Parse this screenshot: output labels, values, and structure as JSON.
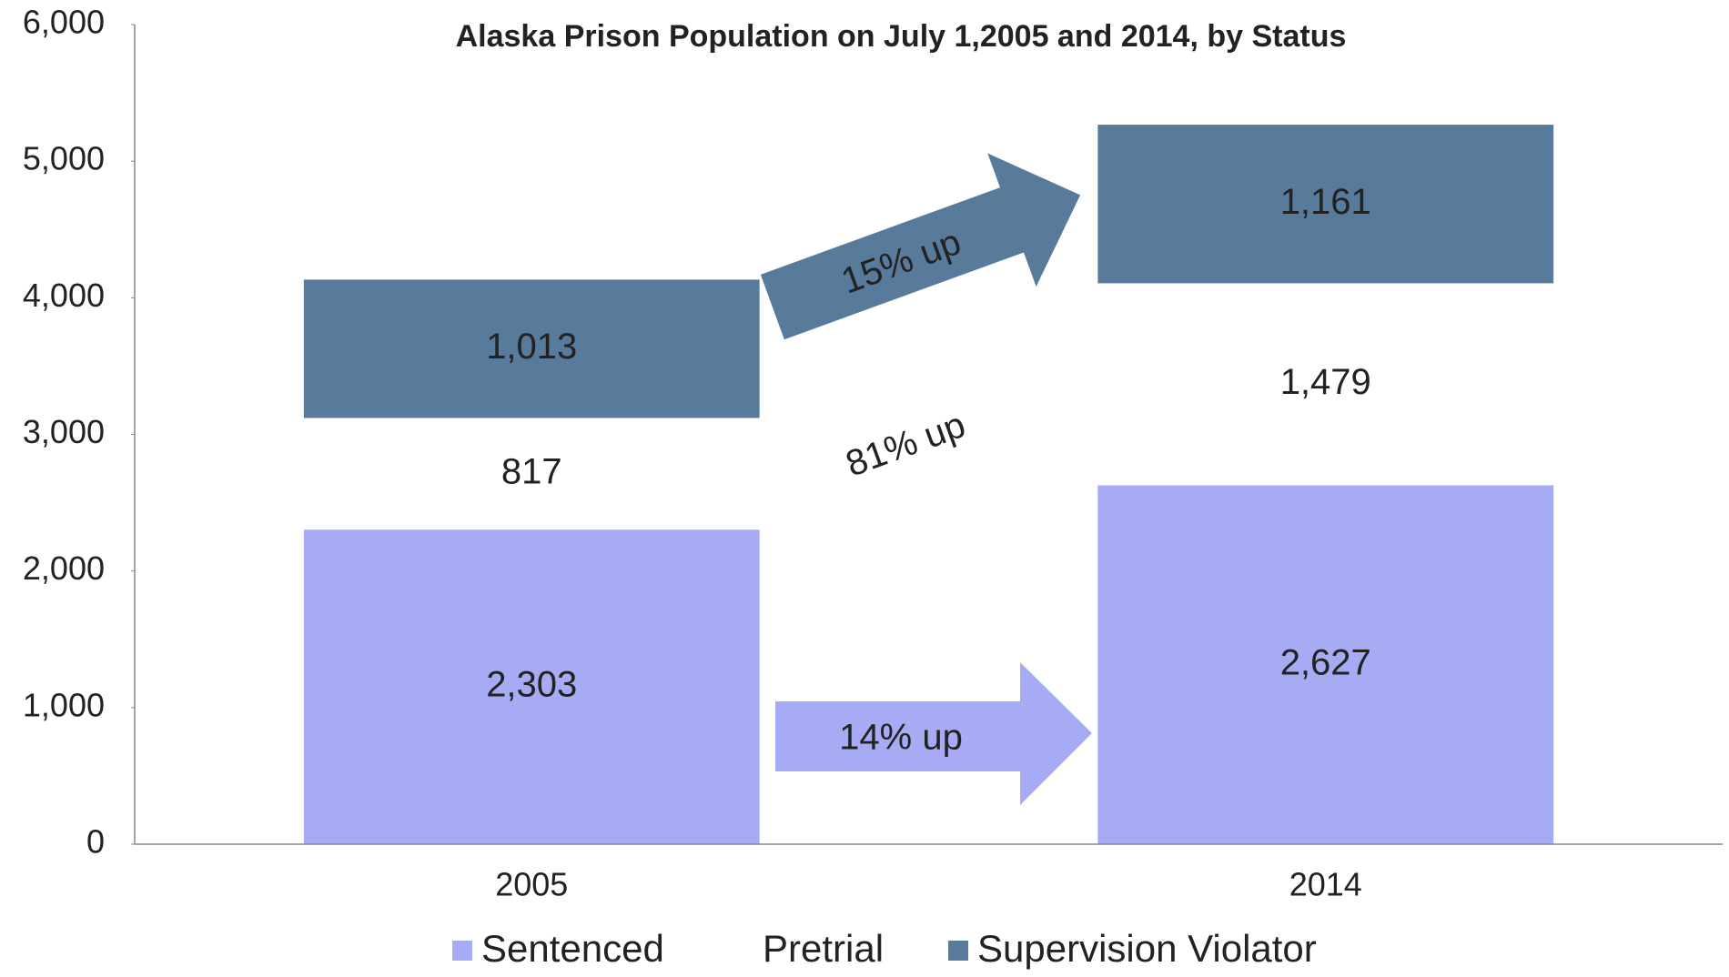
{
  "chart_data": {
    "type": "stacked_bar",
    "title": "Alaska Prison Population on July 1,2005 and  2014, by Status",
    "categories": [
      "2005",
      "2014"
    ],
    "series": [
      {
        "name": "Sentenced",
        "color": "#a6abf4",
        "values": [
          2303,
          2627
        ],
        "value_labels": [
          "2,303",
          "2,627"
        ]
      },
      {
        "name": "Pretrial",
        "color": "#ffffff",
        "values": [
          817,
          1479
        ],
        "value_labels": [
          "817",
          "1,479"
        ]
      },
      {
        "name": "Supervision Violator",
        "color": "#587a9b",
        "values": [
          1013,
          1161
        ],
        "value_labels": [
          "1,013",
          "1,161"
        ]
      }
    ],
    "ylim": [
      0,
      6000
    ],
    "yticks": [
      0,
      {
        "value": 1000,
        "label": "1,000"
      },
      {
        "value": 2000,
        "label": "2,000"
      },
      {
        "value": 3000,
        "label": "3,000"
      },
      {
        "value": 4000,
        "label": "4,000"
      },
      {
        "value": 5000,
        "label": "5,000"
      },
      {
        "value": 6000,
        "label": "6,000"
      }
    ],
    "annotations": [
      "15% up",
      "81% up",
      "14% up"
    ],
    "legend": "bottom",
    "grid": false
  }
}
